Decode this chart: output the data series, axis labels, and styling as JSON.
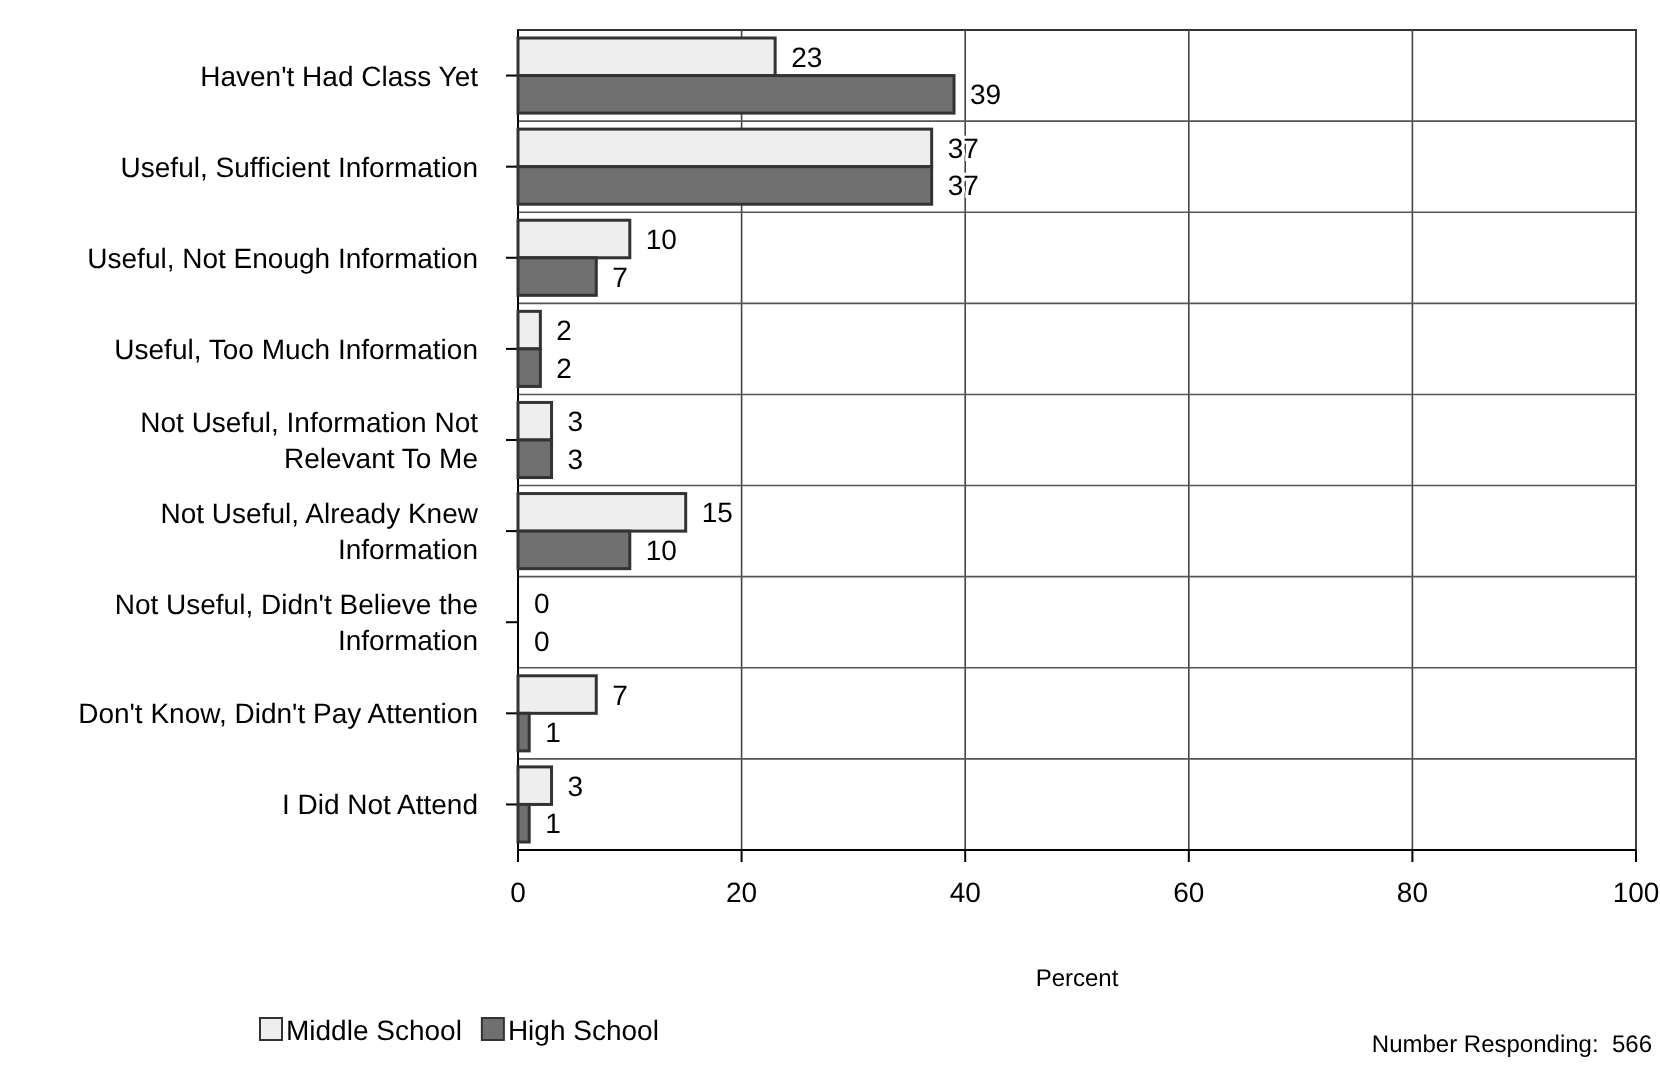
{
  "chart_data": {
    "type": "bar",
    "orientation": "horizontal",
    "categories": [
      "Haven't Had Class Yet",
      "Useful, Sufficient Information",
      "Useful, Not Enough Information",
      "Useful, Too Much Information",
      "Not Useful, Information Not Relevant To Me",
      "Not Useful, Already Knew Information",
      "Not Useful, Didn't Believe the Information",
      "Don't Know, Didn't Pay Attention",
      "I Did Not Attend"
    ],
    "series": [
      {
        "name": "Middle School",
        "color": "#eeeeee",
        "values": [
          23,
          37,
          10,
          2,
          3,
          15,
          0,
          7,
          3
        ]
      },
      {
        "name": "High School",
        "color": "#707070",
        "values": [
          39,
          37,
          7,
          2,
          3,
          10,
          0,
          1,
          1
        ]
      }
    ],
    "xlabel": "Percent",
    "xlim": [
      0,
      100
    ],
    "xticks": [
      0,
      20,
      40,
      60,
      80,
      100
    ],
    "grid": "x",
    "data_labels": true,
    "legend": "bottom left",
    "annotations": [
      "Number Responding:  566"
    ]
  }
}
